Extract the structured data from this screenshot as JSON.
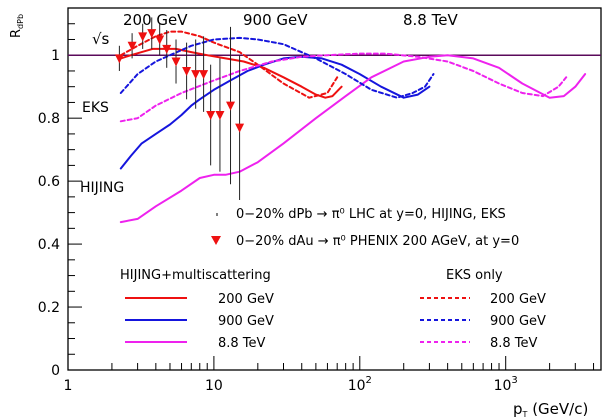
{
  "chart_data": {
    "type": "line",
    "ylabel": "R_dPb",
    "xlabel": "p_T (GeV/c)",
    "x_scale": "log",
    "xlim": [
      1,
      4500
    ],
    "ylim": [
      0,
      1.15
    ],
    "grid": false,
    "x_ticks": [
      1,
      10,
      100,
      1000
    ],
    "x_tick_labels": [
      "1",
      "10",
      "10²",
      "10³"
    ],
    "y_ticks": [
      0,
      0.2,
      0.4,
      0.6,
      0.8,
      1
    ],
    "y_tick_labels": [
      "0",
      "0.2",
      "0.4",
      "0.6",
      "0.8",
      "1"
    ],
    "reference_line": 1,
    "colors": {
      "red": "#ee1111",
      "blue": "#1515dd",
      "magenta": "#ee22ee",
      "ref_line": "#5a0a5a"
    },
    "series": [
      {
        "name": "200 GeV",
        "group": "HIJING+multiscattering",
        "color": "red",
        "dash": false,
        "x": [
          2.3,
          2.7,
          3.2,
          3.8,
          4.5,
          5.5,
          7,
          9,
          12,
          16,
          22,
          30,
          40,
          50,
          58,
          65,
          75
        ],
        "y": [
          0.99,
          1.0,
          1.01,
          1.02,
          1.02,
          1.02,
          1.01,
          1.0,
          0.99,
          0.98,
          0.96,
          0.93,
          0.9,
          0.875,
          0.865,
          0.87,
          0.9
        ]
      },
      {
        "name": "900 GeV",
        "group": "HIJING+multiscattering",
        "color": "blue",
        "dash": false,
        "x": [
          2.3,
          2.7,
          3.2,
          4,
          5,
          6,
          7,
          8,
          10,
          13,
          17,
          22,
          30,
          40,
          55,
          75,
          100,
          140,
          200,
          250,
          300
        ],
        "y": [
          0.64,
          0.68,
          0.72,
          0.75,
          0.78,
          0.81,
          0.84,
          0.86,
          0.89,
          0.92,
          0.95,
          0.97,
          0.99,
          0.995,
          0.99,
          0.97,
          0.94,
          0.9,
          0.865,
          0.875,
          0.9
        ]
      },
      {
        "name": "8.8  TeV",
        "group": "HIJING+multiscattering",
        "color": "magenta",
        "dash": false,
        "x": [
          2.3,
          3,
          4,
          6,
          8,
          10,
          12,
          15,
          20,
          30,
          50,
          80,
          120,
          200,
          300,
          400,
          600,
          900,
          1300,
          2000,
          2500,
          3000,
          3500
        ],
        "y": [
          0.47,
          0.48,
          0.52,
          0.57,
          0.61,
          0.62,
          0.62,
          0.63,
          0.66,
          0.72,
          0.8,
          0.87,
          0.93,
          0.98,
          0.995,
          1.0,
          0.99,
          0.96,
          0.91,
          0.865,
          0.87,
          0.9,
          0.94
        ]
      },
      {
        "name": "200 GeV",
        "group": "EKS only",
        "color": "red",
        "dash": true,
        "x": [
          2.3,
          3,
          4,
          5,
          6,
          8,
          10,
          15,
          20,
          30,
          45,
          60,
          70
        ],
        "y": [
          1.0,
          1.03,
          1.06,
          1.075,
          1.075,
          1.06,
          1.04,
          1.01,
          0.97,
          0.91,
          0.865,
          0.88,
          0.93
        ]
      },
      {
        "name": "900 GeV",
        "group": "EKS only",
        "color": "blue",
        "dash": true,
        "x": [
          2.3,
          3,
          4,
          5,
          7,
          10,
          15,
          20,
          30,
          50,
          80,
          120,
          180,
          230,
          280,
          320
        ],
        "y": [
          0.88,
          0.94,
          0.98,
          1.0,
          1.03,
          1.05,
          1.055,
          1.05,
          1.035,
          0.99,
          0.94,
          0.89,
          0.865,
          0.88,
          0.9,
          0.94
        ]
      },
      {
        "name": "8.8  TeV",
        "group": "EKS only",
        "color": "magenta",
        "dash": true,
        "x": [
          2.3,
          3,
          4,
          6,
          10,
          15,
          25,
          40,
          60,
          100,
          150,
          250,
          400,
          600,
          900,
          1300,
          1800,
          2300,
          2600
        ],
        "y": [
          0.79,
          0.8,
          0.84,
          0.88,
          0.92,
          0.95,
          0.98,
          0.995,
          1.0,
          1.005,
          1.005,
          0.995,
          0.98,
          0.95,
          0.91,
          0.88,
          0.87,
          0.9,
          0.93
        ]
      }
    ],
    "data_points": [
      {
        "name": "0-20% dAu → π⁰ PHENIX 200 AGeV, at y=0",
        "marker": "red-triangle-down",
        "points": [
          {
            "x": 2.25,
            "y": 0.99,
            "err": 0.04
          },
          {
            "x": 2.75,
            "y": 1.03,
            "err": 0.04
          },
          {
            "x": 3.25,
            "y": 1.06,
            "err": 0.04
          },
          {
            "x": 3.75,
            "y": 1.07,
            "err": 0.05
          },
          {
            "x": 4.25,
            "y": 1.05,
            "err": 0.05
          },
          {
            "x": 4.75,
            "y": 1.02,
            "err": 0.06
          },
          {
            "x": 5.5,
            "y": 0.98,
            "err": 0.07
          },
          {
            "x": 6.5,
            "y": 0.95,
            "err": 0.09
          },
          {
            "x": 7.5,
            "y": 0.94,
            "err": 0.11
          },
          {
            "x": 8.5,
            "y": 0.94,
            "err": 0.12
          },
          {
            "x": 9.5,
            "y": 0.81,
            "err": 0.16
          },
          {
            "x": 11,
            "y": 0.81,
            "err": 0.18
          },
          {
            "x": 13,
            "y": 0.84,
            "err": 0.25
          },
          {
            "x": 15,
            "y": 0.77,
            "err": 0.23
          }
        ]
      }
    ],
    "annotations": {
      "energy_200": "200 GeV",
      "energy_900": "900 GeV",
      "energy_88": "8.8  TeV",
      "sqrt_s": "√s",
      "eks": "EKS",
      "hijing": "HIJING"
    },
    "legend": {
      "entry_lhc": "0−20% dPb → π⁰ LHC at y=0, HIJING, EKS",
      "entry_phenix": "0−20% dAu → π⁰ PHENIX 200 AGeV, at y=0",
      "group_hijing": "HIJING+multiscattering",
      "group_eks": "EKS only",
      "label_200": "200 GeV",
      "label_900": "900 GeV",
      "label_88": "8.8  TeV"
    }
  }
}
